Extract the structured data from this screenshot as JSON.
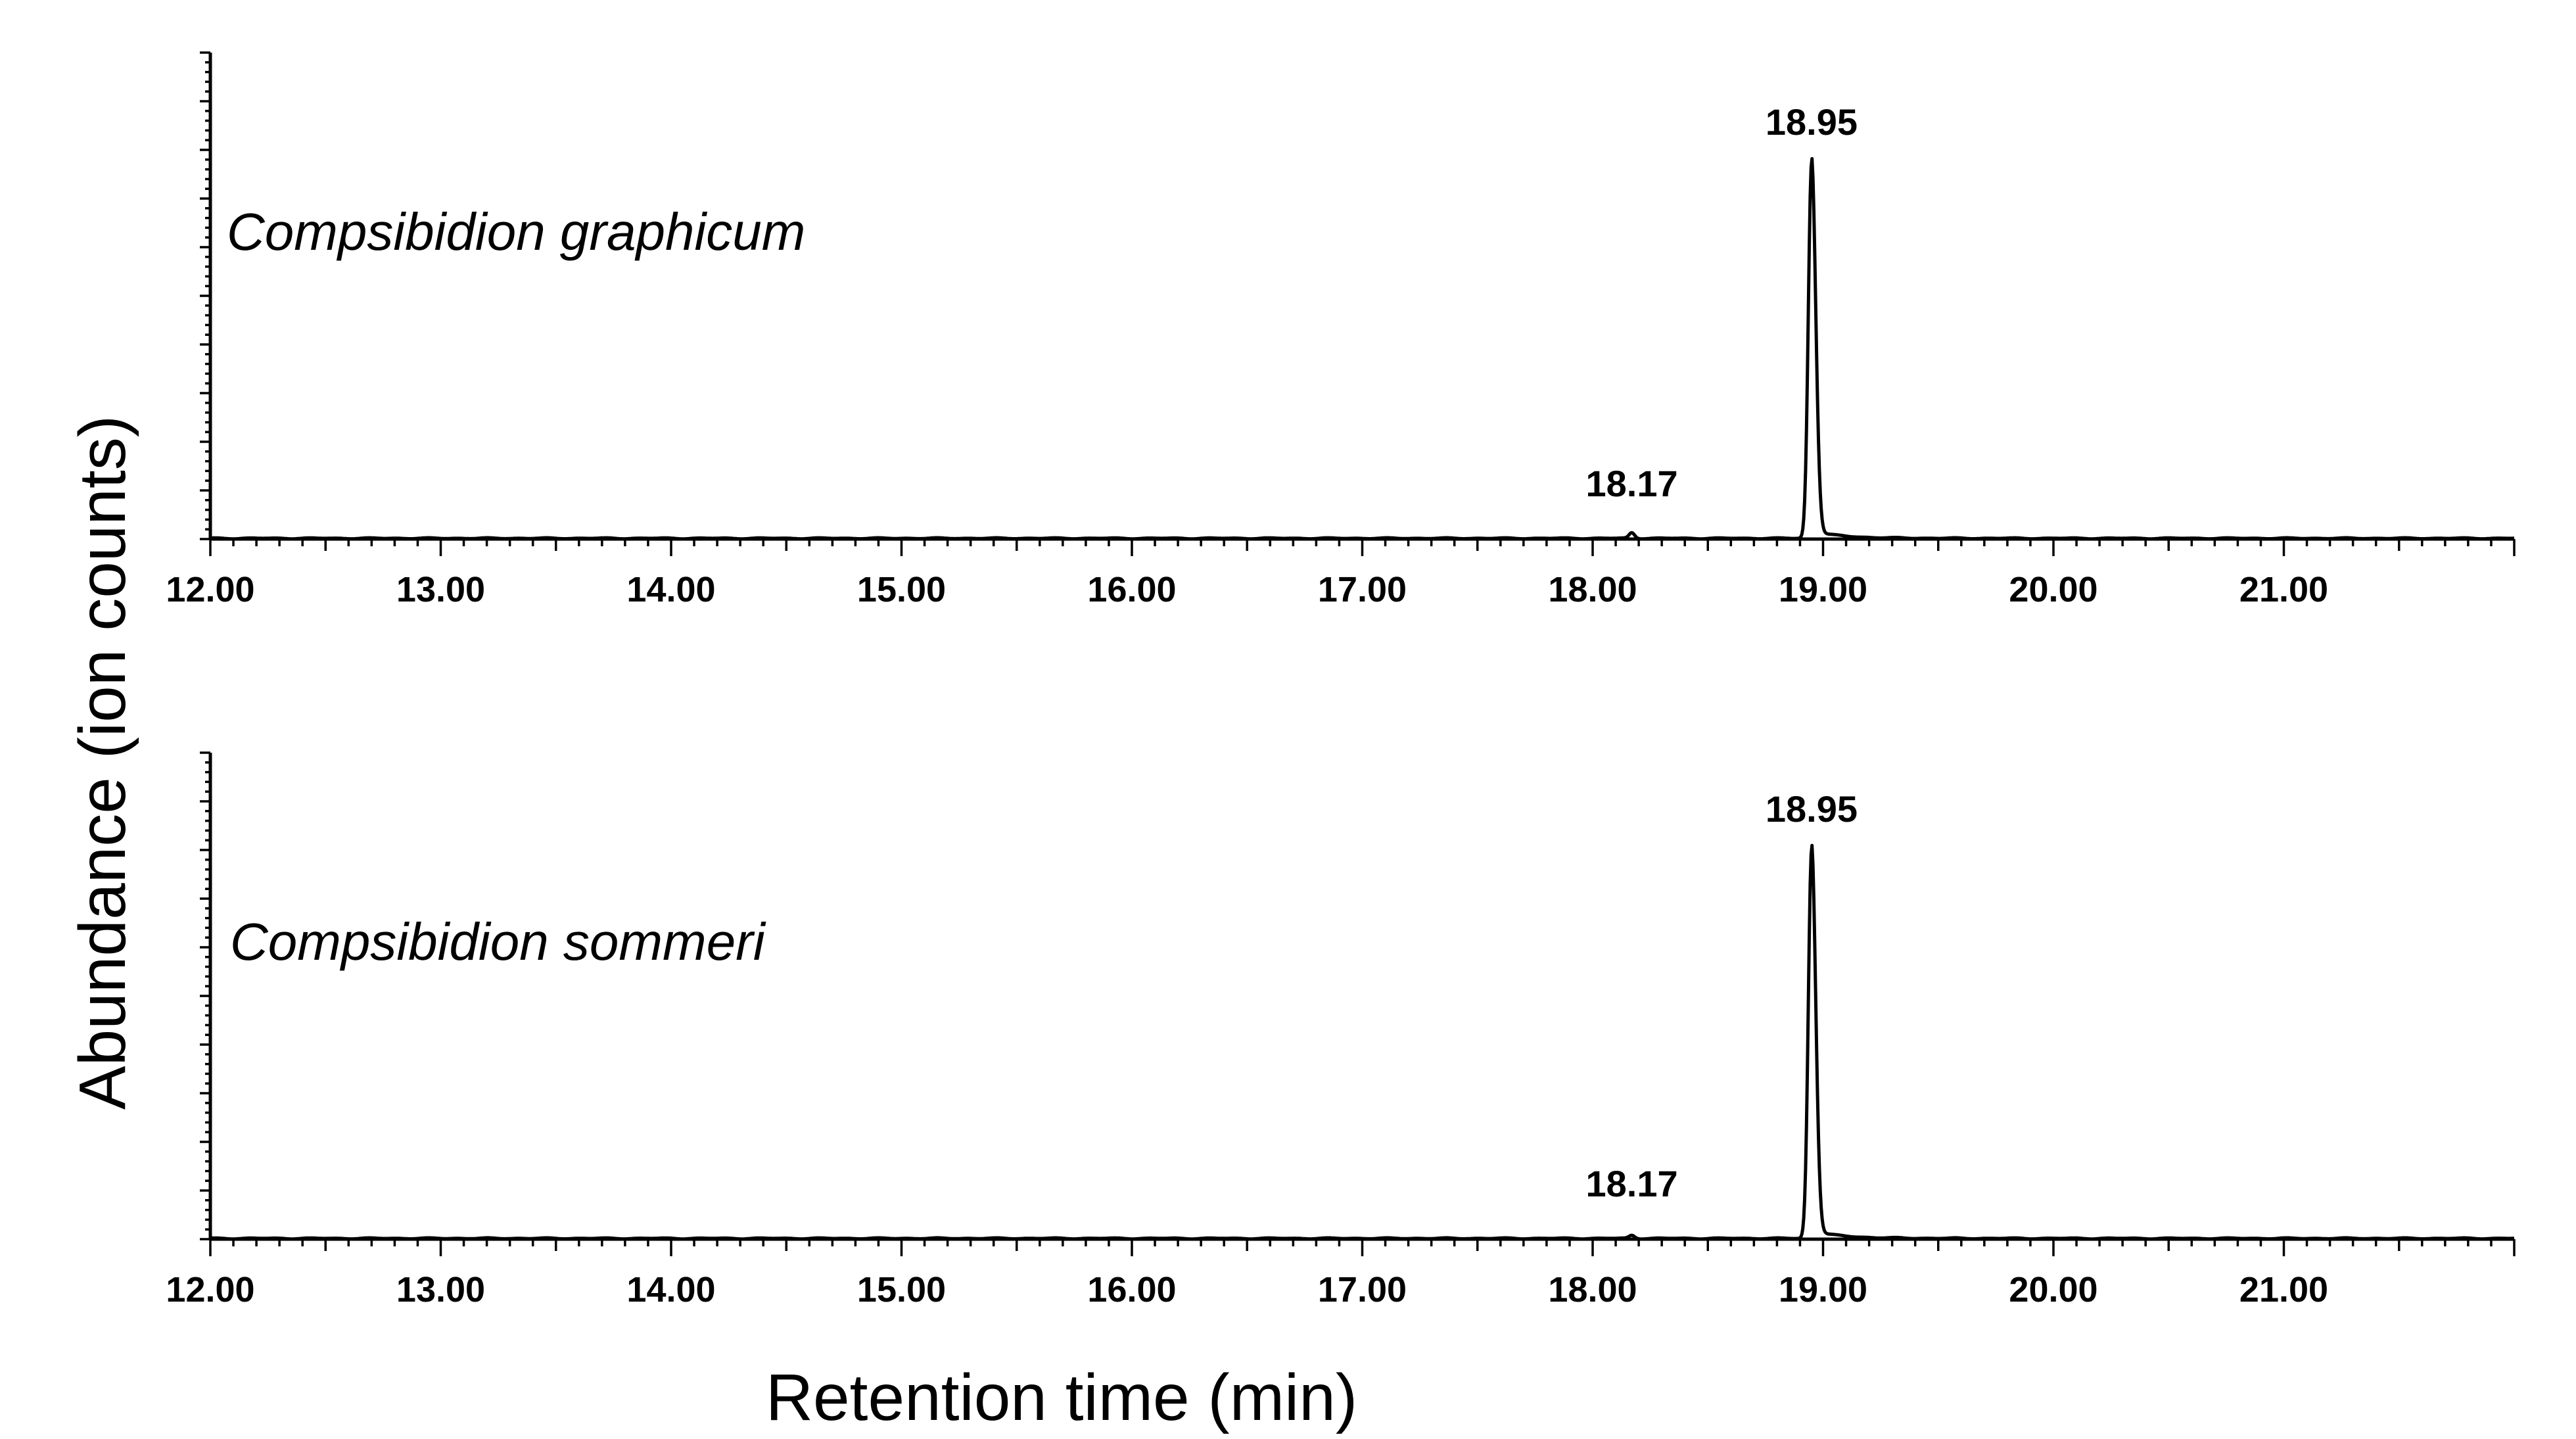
{
  "chart_data": {
    "type": "line",
    "xlabel": "Retention time (min)",
    "ylabel": "Abundance (ion counts)",
    "xlim": [
      12.0,
      22.0
    ],
    "x_ticks": [
      "12.00",
      "13.00",
      "14.00",
      "15.00",
      "16.00",
      "17.00",
      "18.00",
      "19.00",
      "20.00",
      "21.00"
    ],
    "grid": false,
    "panels": [
      {
        "species": "Compsibidion graphicum",
        "y_relative_max": 1.0,
        "peaks": [
          {
            "rt": 18.17,
            "label": "18.17",
            "relative_height": 0.015
          },
          {
            "rt": 18.95,
            "label": "18.95",
            "relative_height": 1.0
          }
        ]
      },
      {
        "species": "Compsibidion sommeri",
        "y_relative_max": 1.0,
        "peaks": [
          {
            "rt": 18.17,
            "label": "18.17",
            "relative_height": 0.008
          },
          {
            "rt": 18.95,
            "label": "18.95",
            "relative_height": 1.0
          }
        ]
      }
    ]
  }
}
